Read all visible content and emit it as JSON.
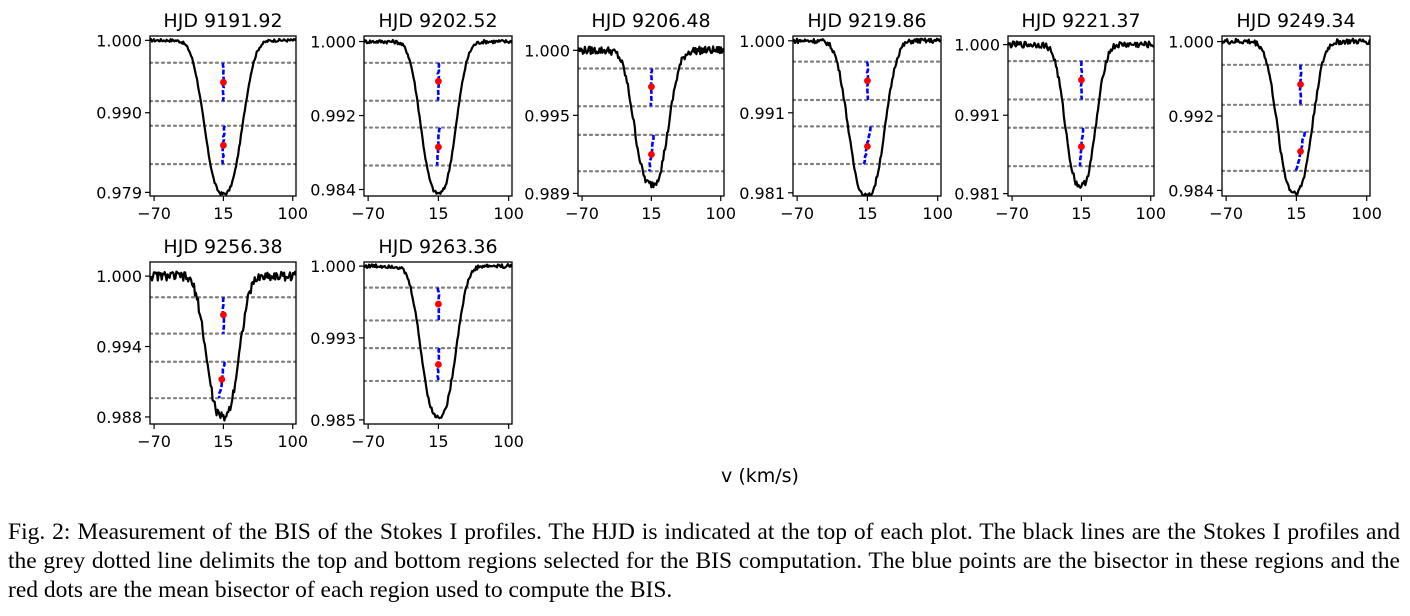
{
  "figure": {
    "xlabel": "v (km/s)",
    "caption": "Fig. 2: Measurement of the BIS of the Stokes I profiles. The HJD is indicated at the top of each plot. The black lines are the Stokes I profiles and the grey dotted line delimits the top and bottom regions selected for the BIS computation. The blue points are the bisector in these regions and the red dots are the mean bisector of each region used to compute the BIS."
  },
  "colors": {
    "profile": "#000000",
    "bisector": "#0000ff",
    "mean_bisector": "#ff0000",
    "region_lines": "#808080"
  },
  "chart_data": [
    {
      "type": "line",
      "title": "HJD 9191.92",
      "xlim": [
        -75,
        104
      ],
      "ylim": [
        0.9785,
        1.0006
      ],
      "xticks": [
        -70,
        15,
        100
      ],
      "yticks": [
        0.979,
        0.99,
        1.0
      ],
      "ytick_labels": [
        "0.979",
        "0.990",
        "1.000"
      ],
      "regions": [
        0.9969,
        0.9916,
        0.9882,
        0.9829
      ],
      "center": 15,
      "depth": 0.0212,
      "sigma": 22,
      "noise": 0.0002,
      "bisector_shift": -1,
      "top_tilt": 0,
      "mean_bisector": [
        [
          15,
          0.9942
        ],
        [
          15,
          0.9855
        ]
      ]
    },
    {
      "type": "line",
      "title": "HJD 9202.52",
      "xlim": [
        -75,
        104
      ],
      "ylim": [
        0.9833,
        1.0006
      ],
      "xticks": [
        -70,
        15,
        100
      ],
      "yticks": [
        0.984,
        0.992,
        1.0
      ],
      "ytick_labels": [
        "0.984",
        "0.992",
        "1.000"
      ],
      "regions": [
        0.9977,
        0.9936,
        0.9907,
        0.9866
      ],
      "center": 15,
      "depth": 0.0164,
      "sigma": 20,
      "noise": 0.0002,
      "bisector_shift": -1,
      "top_tilt": 0,
      "mean_bisector": [
        [
          15,
          0.9957
        ],
        [
          15,
          0.9886
        ]
      ]
    },
    {
      "type": "line",
      "title": "HJD 9206.48",
      "xlim": [
        -75,
        104
      ],
      "ylim": [
        0.9888,
        1.0011
      ],
      "xticks": [
        -70,
        15,
        100
      ],
      "yticks": [
        0.989,
        0.995,
        1.0
      ],
      "ytick_labels": [
        "0.989",
        "0.995",
        "1.000"
      ],
      "regions": [
        0.9986,
        0.9957,
        0.9935,
        0.9907
      ],
      "center": 15,
      "depth": 0.0103,
      "sigma": 20,
      "noise": 0.0003,
      "bisector_shift": -3,
      "top_tilt": 0,
      "mean_bisector": [
        [
          15,
          0.9972
        ],
        [
          15,
          0.992
        ]
      ]
    },
    {
      "type": "line",
      "title": "HJD 9219.86",
      "xlim": [
        -75,
        104
      ],
      "ylim": [
        0.9806,
        1.0006
      ],
      "xticks": [
        -70,
        15,
        100
      ],
      "yticks": [
        0.981,
        0.991,
        1.0
      ],
      "ytick_labels": [
        "0.981",
        "0.991",
        "1.000"
      ],
      "regions": [
        0.9974,
        0.9926,
        0.9893,
        0.9846
      ],
      "center": 14,
      "depth": 0.0194,
      "sigma": 21,
      "noise": 0.0003,
      "bisector_shift": -4,
      "top_tilt": 0,
      "mean_bisector": [
        [
          15,
          0.995
        ],
        [
          15,
          0.9868
        ]
      ]
    },
    {
      "type": "line",
      "title": "HJD 9221.37",
      "xlim": [
        -75,
        104
      ],
      "ylim": [
        0.9807,
        1.0011
      ],
      "xticks": [
        -70,
        15,
        100
      ],
      "yticks": [
        0.981,
        0.991,
        1.0
      ],
      "ytick_labels": [
        "0.981",
        "0.991",
        "1.000"
      ],
      "regions": [
        0.9979,
        0.993,
        0.9894,
        0.9845
      ],
      "center": 14,
      "depth": 0.018,
      "sigma": 18,
      "noise": 0.0004,
      "bisector_shift": -2,
      "top_tilt": 0,
      "mean_bisector": [
        [
          15,
          0.9955
        ],
        [
          15,
          0.987
        ]
      ]
    },
    {
      "type": "line",
      "title": "HJD 9249.34",
      "xlim": [
        -75,
        104
      ],
      "ylim": [
        0.9834,
        1.0006
      ],
      "xticks": [
        -70,
        15,
        100
      ],
      "yticks": [
        0.984,
        0.992,
        1.0
      ],
      "ytick_labels": [
        "0.984",
        "0.992",
        "1.000"
      ],
      "regions": [
        0.9975,
        0.9932,
        0.9903,
        0.9861
      ],
      "center": 13,
      "depth": 0.0162,
      "sigma": 20,
      "noise": 0.0003,
      "bisector_shift": -5,
      "top_tilt": 0,
      "mean_bisector": [
        [
          20,
          0.9954
        ],
        [
          20,
          0.9882
        ]
      ]
    },
    {
      "type": "line",
      "title": "HJD 9256.38",
      "xlim": [
        -75,
        104
      ],
      "ylim": [
        0.9874,
        1.0012
      ],
      "xticks": [
        -70,
        15,
        100
      ],
      "yticks": [
        0.988,
        0.994,
        1.0
      ],
      "ytick_labels": [
        "0.988",
        "0.994",
        "1.000"
      ],
      "regions": [
        0.9982,
        0.9951,
        0.9927,
        0.9896
      ],
      "center": 14,
      "depth": 0.012,
      "sigma": 19,
      "noise": 0.0004,
      "bisector_shift": -3,
      "top_tilt": 0,
      "mean_bisector": [
        [
          15,
          0.9967
        ],
        [
          13,
          0.9912
        ]
      ]
    },
    {
      "type": "line",
      "title": "HJD 9263.36",
      "xlim": [
        -75,
        104
      ],
      "ylim": [
        0.9846,
        1.0004
      ],
      "xticks": [
        -70,
        15,
        100
      ],
      "yticks": [
        0.985,
        0.993,
        1.0
      ],
      "ytick_labels": [
        "0.985",
        "0.993",
        "1.000"
      ],
      "regions": [
        0.9979,
        0.9947,
        0.992,
        0.9888
      ],
      "center": 15,
      "depth": 0.0147,
      "sigma": 20,
      "noise": 0.0002,
      "bisector_shift": -1,
      "top_tilt": 0,
      "mean_bisector": [
        [
          15,
          0.9963
        ],
        [
          15,
          0.9904
        ]
      ]
    }
  ]
}
